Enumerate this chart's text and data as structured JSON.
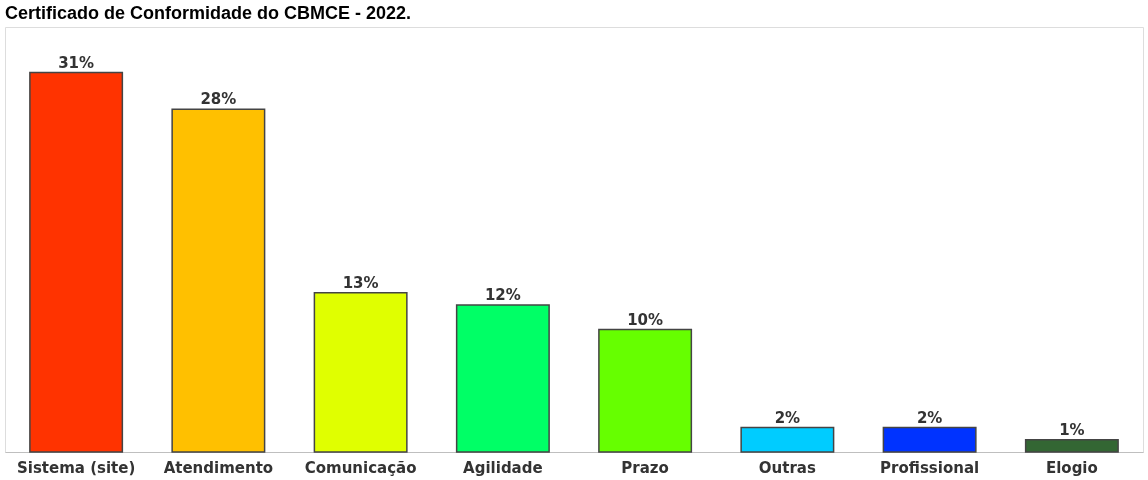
{
  "chart_data": {
    "type": "bar",
    "title": "Certificado de Conformidade do CBMCE - 2022.",
    "categories": [
      "Sistema (site)",
      "Atendimento",
      "Comunicação",
      "Agilidade",
      "Prazo",
      "Outras",
      "Profissional",
      "Elogio"
    ],
    "values": [
      31,
      28,
      13,
      12,
      10,
      2,
      2,
      1
    ],
    "colors": [
      "#ff3300",
      "#ffc000",
      "#e0ff00",
      "#00ff66",
      "#66ff00",
      "#00ccff",
      "#0033ff",
      "#336633"
    ],
    "value_labels": [
      "31%",
      "28%",
      "13%",
      "12%",
      "10%",
      "2%",
      "2%",
      "1%"
    ],
    "grid": false
  }
}
